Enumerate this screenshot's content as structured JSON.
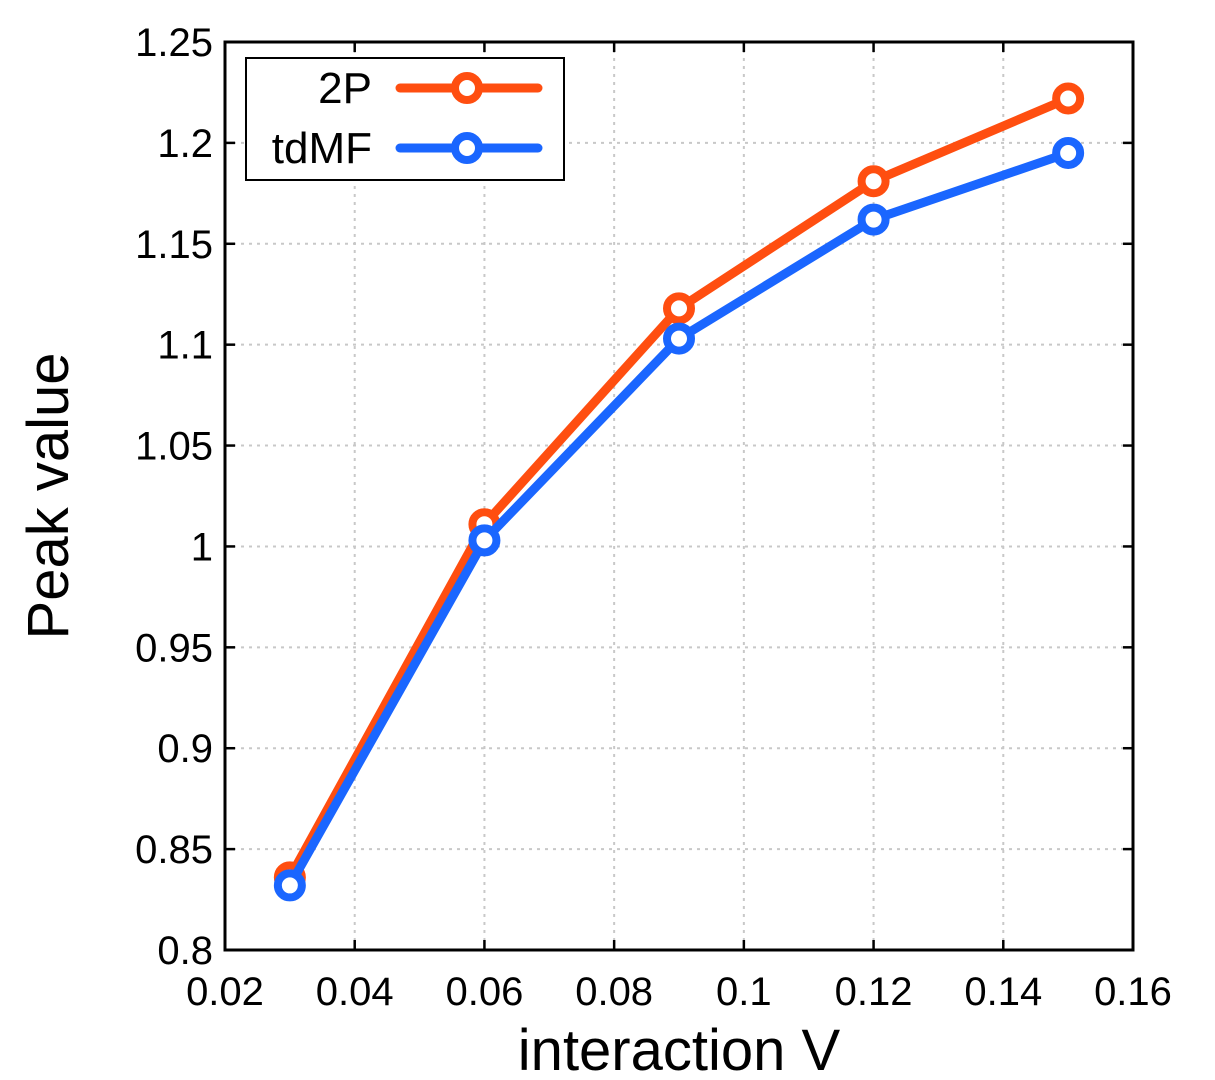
{
  "chart_data": {
    "type": "line",
    "title": "",
    "xlabel": "interaction V",
    "ylabel": "Peak value",
    "xlim": [
      0.02,
      0.16
    ],
    "ylim": [
      0.8,
      1.25
    ],
    "xticks": [
      0.02,
      0.04,
      0.06,
      0.08,
      0.1,
      0.12,
      0.14,
      0.16
    ],
    "xtick_labels": [
      "0.02",
      "0.04",
      "0.06",
      "0.08",
      "0.1",
      "0.12",
      "0.14",
      "0.16"
    ],
    "yticks": [
      0.8,
      0.85,
      0.9,
      0.95,
      1.0,
      1.05,
      1.1,
      1.15,
      1.2,
      1.25
    ],
    "ytick_labels": [
      "0.8",
      "0.85",
      "0.9",
      "0.95",
      "1",
      "1.05",
      "1.1",
      "1.15",
      "1.2",
      "1.25"
    ],
    "grid": true,
    "legend_position": "top-left",
    "x": [
      0.03,
      0.06,
      0.09,
      0.12,
      0.15
    ],
    "series": [
      {
        "name": "2P",
        "color": "#ff4e10",
        "marker": "circle",
        "values": [
          0.836,
          1.011,
          1.118,
          1.181,
          1.222
        ]
      },
      {
        "name": "tdMF",
        "color": "#1a66ff",
        "marker": "circle",
        "values": [
          0.832,
          1.003,
          1.103,
          1.162,
          1.195
        ]
      }
    ]
  }
}
